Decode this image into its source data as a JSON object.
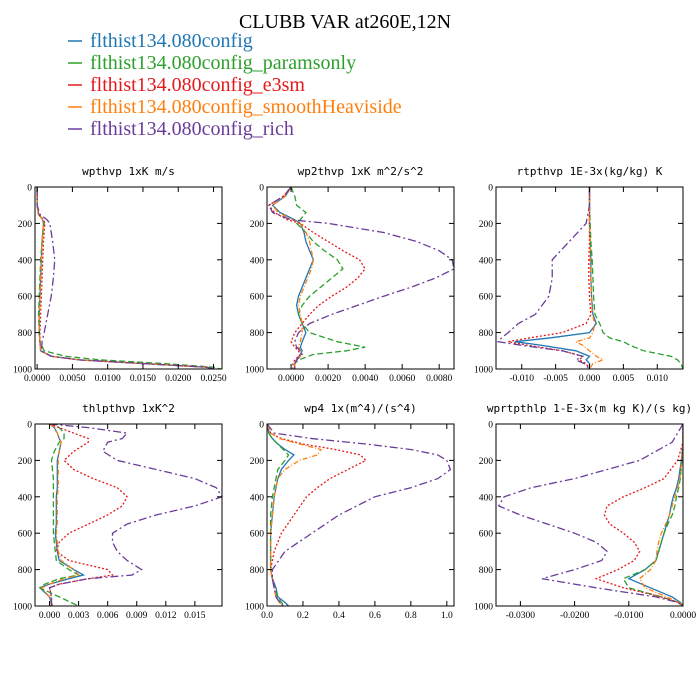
{
  "title": "CLUBB VAR at260E,12N",
  "legend": [
    {
      "label": "flthist134.080config",
      "color": "#1f77b4",
      "dash": "0"
    },
    {
      "label": "flthist134.080config_paramsonly",
      "color": "#2ca02c",
      "dash": "6,3"
    },
    {
      "label": "flthist134.080config_e3sm",
      "color": "#e31a1c",
      "dash": "2,2"
    },
    {
      "label": "flthist134.080config_smoothHeaviside",
      "color": "#ff7f0e",
      "dash": "5,2,1,2"
    },
    {
      "label": "flthist134.080config_rich",
      "color": "#6a3d9a",
      "dash": "8,3,2,3"
    }
  ],
  "chart_data": [
    {
      "type": "line",
      "title": "wpthvp  1xK m/s",
      "xlim": [
        -0.0003,
        0.0262
      ],
      "ylim": [
        1000,
        0
      ],
      "xticks": [
        0.0,
        0.005,
        0.01,
        0.015,
        0.02,
        0.025
      ],
      "xticklabels": [
        "0.0000",
        "0.0050",
        "0.0100",
        "0.0150",
        "0.0200",
        "0.0250"
      ],
      "yticks": [
        0,
        200,
        400,
        600,
        800,
        1000
      ],
      "y": [
        0,
        100,
        150,
        180,
        200,
        250,
        300,
        400,
        500,
        600,
        700,
        800,
        850,
        900,
        930,
        950,
        970,
        990,
        1000
      ],
      "series": [
        {
          "values": [
            0.0,
            0.0,
            0.0002,
            0.0008,
            0.0009,
            0.0008,
            0.0007,
            0.0006,
            0.0005,
            0.0004,
            0.0003,
            0.0003,
            0.0004,
            0.0005,
            0.002,
            0.006,
            0.015,
            0.024,
            0.025
          ]
        },
        {
          "values": [
            0.0,
            0.0,
            0.0002,
            0.0009,
            0.001,
            0.0008,
            0.0007,
            0.0005,
            0.0004,
            0.0003,
            0.0002,
            0.0003,
            0.0004,
            0.001,
            0.004,
            0.009,
            0.018,
            0.025,
            0.026
          ]
        },
        {
          "values": [
            0.0,
            0.0,
            0.0002,
            0.0009,
            0.0011,
            0.001,
            0.0009,
            0.0008,
            0.0007,
            0.0006,
            0.0005,
            0.0004,
            0.0004,
            0.0005,
            0.002,
            0.006,
            0.015,
            0.024,
            0.025
          ]
        },
        {
          "values": [
            0.0,
            0.0,
            0.0002,
            0.0008,
            0.0009,
            0.0008,
            0.0007,
            0.0006,
            0.0005,
            0.0004,
            0.0003,
            0.0003,
            0.0004,
            0.0005,
            0.002,
            0.006,
            0.015,
            0.024,
            0.025
          ]
        },
        {
          "values": [
            0.0,
            0.0,
            0.0004,
            0.0014,
            0.0018,
            0.002,
            0.0022,
            0.0025,
            0.0023,
            0.002,
            0.0015,
            0.001,
            0.0007,
            0.0006,
            0.002,
            0.006,
            0.015,
            0.024,
            0.025
          ]
        }
      ]
    },
    {
      "type": "line",
      "title": "wp2thvp  1xK m^2/s^2",
      "xlim": [
        -0.0013,
        0.0088
      ],
      "ylim": [
        1000,
        0
      ],
      "xticks": [
        0.0,
        0.002,
        0.004,
        0.006,
        0.008
      ],
      "xticklabels": [
        "0.0000",
        "0.0020",
        "0.0040",
        "0.0060",
        "0.0080"
      ],
      "yticks": [
        0,
        200,
        400,
        600,
        800,
        1000
      ],
      "y": [
        0,
        50,
        100,
        140,
        180,
        200,
        250,
        300,
        350,
        400,
        450,
        500,
        550,
        600,
        650,
        700,
        750,
        800,
        850,
        880,
        900,
        920,
        950,
        970,
        1000
      ],
      "series": [
        {
          "values": [
            0,
            -0.0003,
            -0.001,
            -0.0006,
            0.0002,
            0.0005,
            0.0007,
            0.0008,
            0.001,
            0.0012,
            0.001,
            0.0008,
            0.0006,
            0.0004,
            0.0003,
            0.0004,
            0.0006,
            0.0008,
            0.0006,
            0.0005,
            0.0006,
            0.0005,
            0.0003,
            0.0002,
            0.0002
          ]
        },
        {
          "values": [
            0,
            0.0002,
            0.0003,
            0.0008,
            0.0005,
            0.0003,
            0.0008,
            0.0012,
            0.0018,
            0.0025,
            0.0028,
            0.0022,
            0.0016,
            0.001,
            0.0006,
            0.0004,
            0.0006,
            0.001,
            0.0025,
            0.004,
            0.003,
            0.0012,
            0.0004,
            0.0002,
            0.0001
          ]
        },
        {
          "values": [
            0,
            -0.0004,
            -0.0012,
            -0.0009,
            -0.0002,
            0.0005,
            0.0012,
            0.002,
            0.0028,
            0.0037,
            0.004,
            0.0036,
            0.003,
            0.0022,
            0.0015,
            0.001,
            0.0006,
            0.0002,
            0.0,
            0.0002,
            0.0004,
            0.0005,
            0.0002,
            0.0001,
            0.0001
          ]
        },
        {
          "values": [
            0,
            -0.0003,
            -0.001,
            -0.0007,
            0.0001,
            0.0005,
            0.0008,
            0.001,
            0.0011,
            0.0012,
            0.0011,
            0.0009,
            0.0007,
            0.0005,
            0.0004,
            0.0005,
            0.0006,
            0.0006,
            0.0005,
            0.0004,
            0.0005,
            0.0006,
            0.0003,
            0.0002,
            0.0002
          ]
        },
        {
          "values": [
            0,
            -0.0004,
            -0.0012,
            -0.001,
            0.0,
            0.002,
            0.005,
            0.0068,
            0.008,
            0.0087,
            0.0088,
            0.0078,
            0.0065,
            0.005,
            0.0036,
            0.0022,
            0.001,
            0.0004,
            0.0002,
            0.0003,
            0.0005,
            0.0006,
            0.0003,
            0.0002,
            0.0002
          ]
        }
      ]
    },
    {
      "type": "line",
      "title": "rtpthvp  1E-3x(kg/kg) K",
      "xlim": [
        -0.0138,
        0.0138
      ],
      "ylim": [
        1000,
        0
      ],
      "xticks": [
        -0.01,
        -0.005,
        0.0,
        0.005,
        0.01
      ],
      "xticklabels": [
        "-0.010",
        "-0.005",
        "0.000",
        "0.005",
        "0.010"
      ],
      "yticks": [
        0,
        200,
        400,
        600,
        800,
        1000
      ],
      "y": [
        0,
        100,
        200,
        300,
        400,
        500,
        600,
        700,
        750,
        800,
        830,
        850,
        870,
        900,
        930,
        950,
        970,
        1000
      ],
      "series": [
        {
          "values": [
            0,
            0,
            0,
            0.0001,
            0.0002,
            0.0002,
            0.0003,
            0.0005,
            0.001,
            0.0,
            -0.006,
            -0.011,
            -0.007,
            -0.002,
            0.0,
            -0.0005,
            0.0,
            0.0
          ]
        },
        {
          "values": [
            0,
            0,
            0.0001,
            0.0002,
            0.0004,
            0.0005,
            0.0006,
            0.0008,
            0.0015,
            0.002,
            0.003,
            0.005,
            0.006,
            0.008,
            0.012,
            0.013,
            0.0135,
            0.0138
          ]
        },
        {
          "values": [
            0,
            0,
            0,
            0.0,
            -0.0001,
            -0.0001,
            0.0,
            0.0002,
            -0.0005,
            -0.004,
            -0.009,
            -0.012,
            -0.009,
            -0.004,
            -0.001,
            -0.0015,
            -0.0005,
            0.0
          ]
        },
        {
          "values": [
            0,
            0,
            0,
            0.0001,
            0.0001,
            0.0002,
            0.0003,
            0.0004,
            0.0008,
            0.0005,
            0.0,
            -0.002,
            -0.001,
            0.0,
            0.001,
            0.002,
            0.0005,
            0.0
          ]
        },
        {
          "values": [
            0,
            0,
            -0.0005,
            -0.003,
            -0.0055,
            -0.0055,
            -0.006,
            -0.008,
            -0.0105,
            -0.012,
            -0.013,
            -0.0135,
            -0.01,
            -0.004,
            -0.001,
            -0.002,
            -0.0008,
            0.0
          ]
        }
      ]
    },
    {
      "type": "line",
      "title": "thlpthvp  1xK^2",
      "xlim": [
        -0.0015,
        0.0178
      ],
      "ylim": [
        1000,
        0
      ],
      "xticks": [
        0.0,
        0.003,
        0.006,
        0.009,
        0.012,
        0.015
      ],
      "xticklabels": [
        "0.000",
        "0.003",
        "0.006",
        "0.009",
        "0.012",
        "0.015"
      ],
      "yticks": [
        0,
        200,
        400,
        600,
        800,
        1000
      ],
      "y": [
        0,
        20,
        50,
        80,
        100,
        150,
        200,
        250,
        300,
        350,
        400,
        450,
        500,
        550,
        600,
        650,
        700,
        750,
        800,
        830,
        850,
        880,
        900,
        950,
        1000
      ],
      "series": [
        {
          "values": [
            0,
            0.0005,
            0.0008,
            0.001,
            0.0012,
            0.001,
            0.0008,
            0.0008,
            0.0008,
            0.0008,
            0.0007,
            0.0007,
            0.0007,
            0.0007,
            0.0006,
            0.0007,
            0.0008,
            0.001,
            0.0025,
            0.0035,
            0.002,
            0.0,
            -0.001,
            0.0,
            0.0003
          ]
        },
        {
          "values": [
            0,
            0.001,
            0.0015,
            0.0015,
            0.001,
            0.0005,
            0.0002,
            0.0003,
            0.0004,
            0.0004,
            0.0004,
            0.0004,
            0.0004,
            0.0004,
            0.0004,
            0.0005,
            0.0006,
            0.0007,
            0.002,
            0.003,
            0.001,
            -0.0005,
            -0.001,
            0.001,
            0.003
          ]
        },
        {
          "values": [
            0,
            0.001,
            0.0025,
            0.004,
            0.004,
            0.0025,
            0.0015,
            0.0025,
            0.0045,
            0.007,
            0.008,
            0.0075,
            0.006,
            0.004,
            0.002,
            0.001,
            0.0007,
            0.002,
            0.006,
            0.0065,
            0.004,
            0.001,
            0.0,
            0.0002,
            0.0002
          ]
        },
        {
          "values": [
            0,
            0.0005,
            0.0008,
            0.001,
            0.0012,
            0.001,
            0.0009,
            0.0009,
            0.0009,
            0.0009,
            0.0008,
            0.0008,
            0.0008,
            0.0008,
            0.0007,
            0.0008,
            0.0009,
            0.0012,
            0.0025,
            0.003,
            0.0015,
            0.0,
            -0.0008,
            0.0,
            0.0002
          ]
        },
        {
          "values": [
            0,
            0.004,
            0.008,
            0.0075,
            0.006,
            0.0055,
            0.007,
            0.011,
            0.015,
            0.0172,
            0.0178,
            0.015,
            0.011,
            0.008,
            0.0065,
            0.0065,
            0.007,
            0.008,
            0.0095,
            0.0085,
            0.004,
            0.001,
            0.0,
            0.0002,
            0.0002
          ]
        }
      ]
    },
    {
      "type": "line",
      "title": "wp4  1x(m^4)/(s^4)",
      "xlim": [
        0.0,
        1.04
      ],
      "ylim": [
        1000,
        0
      ],
      "xticks": [
        0.0,
        0.2,
        0.4,
        0.6,
        0.8,
        1.0
      ],
      "xticklabels": [
        "0.0",
        "0.2",
        "0.4",
        "0.6",
        "0.8",
        "1.0"
      ],
      "yticks": [
        0,
        200,
        400,
        600,
        800,
        1000
      ],
      "y": [
        0,
        50,
        80,
        110,
        140,
        170,
        200,
        250,
        300,
        350,
        400,
        500,
        600,
        700,
        800,
        850,
        900,
        950,
        980,
        1000
      ],
      "series": [
        {
          "values": [
            0,
            0.01,
            0.03,
            0.06,
            0.1,
            0.15,
            0.12,
            0.08,
            0.06,
            0.05,
            0.04,
            0.03,
            0.02,
            0.02,
            0.02,
            0.03,
            0.05,
            0.06,
            0.1,
            0.12
          ]
        },
        {
          "values": [
            0,
            0.01,
            0.03,
            0.06,
            0.09,
            0.12,
            0.1,
            0.06,
            0.05,
            0.04,
            0.03,
            0.02,
            0.02,
            0.02,
            0.02,
            0.03,
            0.04,
            0.06,
            0.08,
            0.1
          ]
        },
        {
          "values": [
            0,
            0.02,
            0.08,
            0.2,
            0.38,
            0.52,
            0.55,
            0.45,
            0.35,
            0.28,
            0.22,
            0.15,
            0.08,
            0.04,
            0.02,
            0.03,
            0.04,
            0.05,
            0.07,
            0.09
          ]
        },
        {
          "values": [
            0,
            0.02,
            0.07,
            0.18,
            0.3,
            0.28,
            0.18,
            0.1,
            0.06,
            0.05,
            0.04,
            0.03,
            0.02,
            0.02,
            0.02,
            0.03,
            0.04,
            0.05,
            0.07,
            0.09
          ]
        },
        {
          "values": [
            0,
            0.04,
            0.25,
            0.55,
            0.8,
            0.95,
            1.0,
            1.02,
            0.95,
            0.8,
            0.6,
            0.4,
            0.25,
            0.1,
            0.03,
            0.03,
            0.04,
            0.05,
            0.07,
            0.09
          ]
        }
      ]
    },
    {
      "type": "line",
      "title": "wprtpthlp  1-E-3x(m kg K)/(s kg)",
      "xlim": [
        -0.0345,
        0.0
      ],
      "ylim": [
        1000,
        0
      ],
      "xticks": [
        -0.03,
        -0.02,
        -0.01,
        0.0
      ],
      "xticklabels": [
        "-0.0300",
        "-0.0200",
        "-0.0100",
        "0.0000"
      ],
      "yticks": [
        0,
        200,
        400,
        600,
        800,
        1000
      ],
      "y": [
        0,
        100,
        200,
        300,
        350,
        400,
        450,
        500,
        550,
        600,
        650,
        700,
        750,
        800,
        850,
        900,
        950,
        980,
        1000
      ],
      "series": [
        {
          "values": [
            0,
            0,
            -0.0003,
            -0.0008,
            -0.0012,
            -0.0018,
            -0.0022,
            -0.0025,
            -0.003,
            -0.0035,
            -0.004,
            -0.0045,
            -0.005,
            -0.007,
            -0.01,
            -0.006,
            -0.002,
            -0.0005,
            0.0
          ]
        },
        {
          "values": [
            0,
            0,
            -0.0002,
            -0.0005,
            -0.0008,
            -0.0012,
            -0.0015,
            -0.002,
            -0.0028,
            -0.0035,
            -0.004,
            -0.0045,
            -0.005,
            -0.007,
            -0.011,
            -0.01,
            -0.004,
            -0.0008,
            0.0
          ]
        },
        {
          "values": [
            0,
            0,
            -0.001,
            -0.0035,
            -0.007,
            -0.011,
            -0.014,
            -0.0145,
            -0.0135,
            -0.011,
            -0.009,
            -0.008,
            -0.009,
            -0.012,
            -0.016,
            -0.011,
            -0.004,
            -0.001,
            0.0
          ]
        },
        {
          "values": [
            0,
            0,
            -0.0002,
            -0.0006,
            -0.001,
            -0.0015,
            -0.002,
            -0.0025,
            -0.0032,
            -0.004,
            -0.0045,
            -0.0048,
            -0.005,
            -0.006,
            -0.008,
            -0.007,
            -0.003,
            -0.0008,
            0.0
          ]
        },
        {
          "values": [
            0,
            -0.002,
            -0.008,
            -0.02,
            -0.028,
            -0.033,
            -0.034,
            -0.03,
            -0.025,
            -0.02,
            -0.016,
            -0.014,
            -0.015,
            -0.02,
            -0.026,
            -0.016,
            -0.005,
            -0.001,
            0.0
          ]
        }
      ]
    }
  ]
}
